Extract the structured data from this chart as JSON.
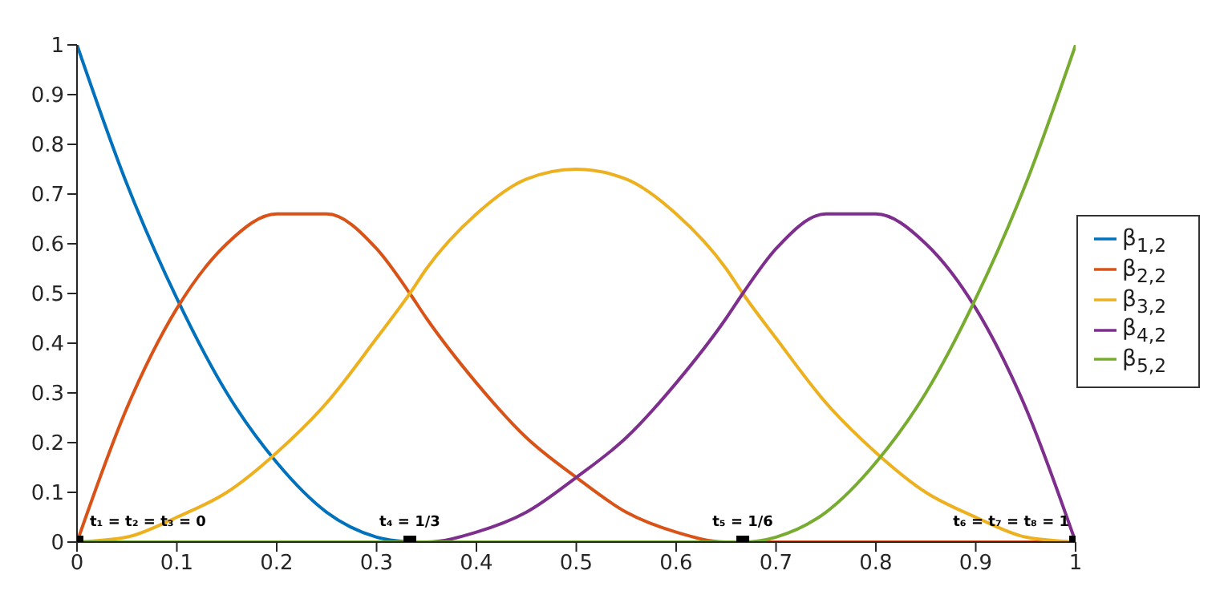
{
  "chart_data": {
    "type": "line",
    "x": [
      0,
      0.05,
      0.1,
      0.15,
      0.2,
      0.25,
      0.3,
      0.3333,
      0.35,
      0.4,
      0.45,
      0.5,
      0.55,
      0.6,
      0.65,
      0.6667,
      0.7,
      0.75,
      0.8,
      0.85,
      0.9,
      0.95,
      1
    ],
    "series": [
      {
        "name": "β$_{1,2}$",
        "color": "#0072bd",
        "values": [
          1,
          0.72,
          0.49,
          0.3,
          0.16,
          0.06,
          0.01,
          0,
          null,
          null,
          null,
          null,
          null,
          null,
          null,
          null,
          null,
          null,
          null,
          null,
          null,
          null,
          null
        ]
      },
      {
        "name": "β$_{2,2}$",
        "color": "#d95319",
        "values": [
          0,
          0.27,
          0.47,
          0.6,
          0.66,
          0.66,
          0.59,
          0.5,
          0.45,
          0.32,
          0.21,
          0.13,
          0.06,
          0.02,
          0,
          0,
          0,
          0,
          0,
          0,
          0,
          0,
          0
        ]
      },
      {
        "name": "β$_{3,2}$",
        "color": "#edb120",
        "values": [
          0,
          0.01,
          0.05,
          0.1,
          0.18,
          0.28,
          0.41,
          0.5,
          0.55,
          0.66,
          0.73,
          0.75,
          0.73,
          0.66,
          0.55,
          0.5,
          0.41,
          0.28,
          0.18,
          0.1,
          0.05,
          0.01,
          0
        ]
      },
      {
        "name": "β$_{4,2}$",
        "color": "#7e2f8e",
        "values": [
          null,
          null,
          null,
          null,
          null,
          null,
          null,
          0,
          0,
          0.02,
          0.06,
          0.13,
          0.21,
          0.32,
          0.45,
          0.5,
          0.59,
          0.66,
          0.66,
          0.6,
          0.47,
          0.27,
          0
        ]
      },
      {
        "name": "β$_{5,2}$",
        "color": "#77ac30",
        "values": [
          0,
          0,
          0,
          0,
          0,
          0,
          0,
          0,
          0,
          0,
          0,
          0,
          0,
          0,
          0,
          0,
          0.01,
          0.06,
          0.16,
          0.3,
          0.49,
          0.72,
          1
        ]
      },
      {
        "type": "scatter",
        "color": "#000000",
        "marker": "square",
        "x": [
          0,
          0.3333,
          0.6667,
          1
        ],
        "values": [
          0,
          0,
          0,
          0
        ]
      }
    ],
    "annotations": [
      {
        "text": "t₁ = t₂ = t₃ = 0",
        "x": 0,
        "y": 0
      },
      {
        "text": "t₄ = 1/3",
        "x": 0.3333,
        "y": 0
      },
      {
        "text": "t₅ = 1/6",
        "x": 0.6667,
        "y": 0
      },
      {
        "text": "t₆ = t₇ = t₈ = 1",
        "x": 1,
        "y": 0
      }
    ],
    "xlim": [
      0,
      1
    ],
    "xticks": [
      0,
      0.1,
      0.2,
      0.3,
      0.4,
      0.5,
      0.6,
      0.7,
      0.8,
      0.9,
      1
    ],
    "ylim": [
      0,
      1
    ],
    "yticks": [
      0,
      0.1,
      0.2,
      0.3,
      0.4,
      0.5,
      0.6,
      0.7,
      0.8,
      0.9,
      1
    ],
    "grid": false,
    "legend": "right",
    "marker": "none",
    "line_style": "solid"
  }
}
